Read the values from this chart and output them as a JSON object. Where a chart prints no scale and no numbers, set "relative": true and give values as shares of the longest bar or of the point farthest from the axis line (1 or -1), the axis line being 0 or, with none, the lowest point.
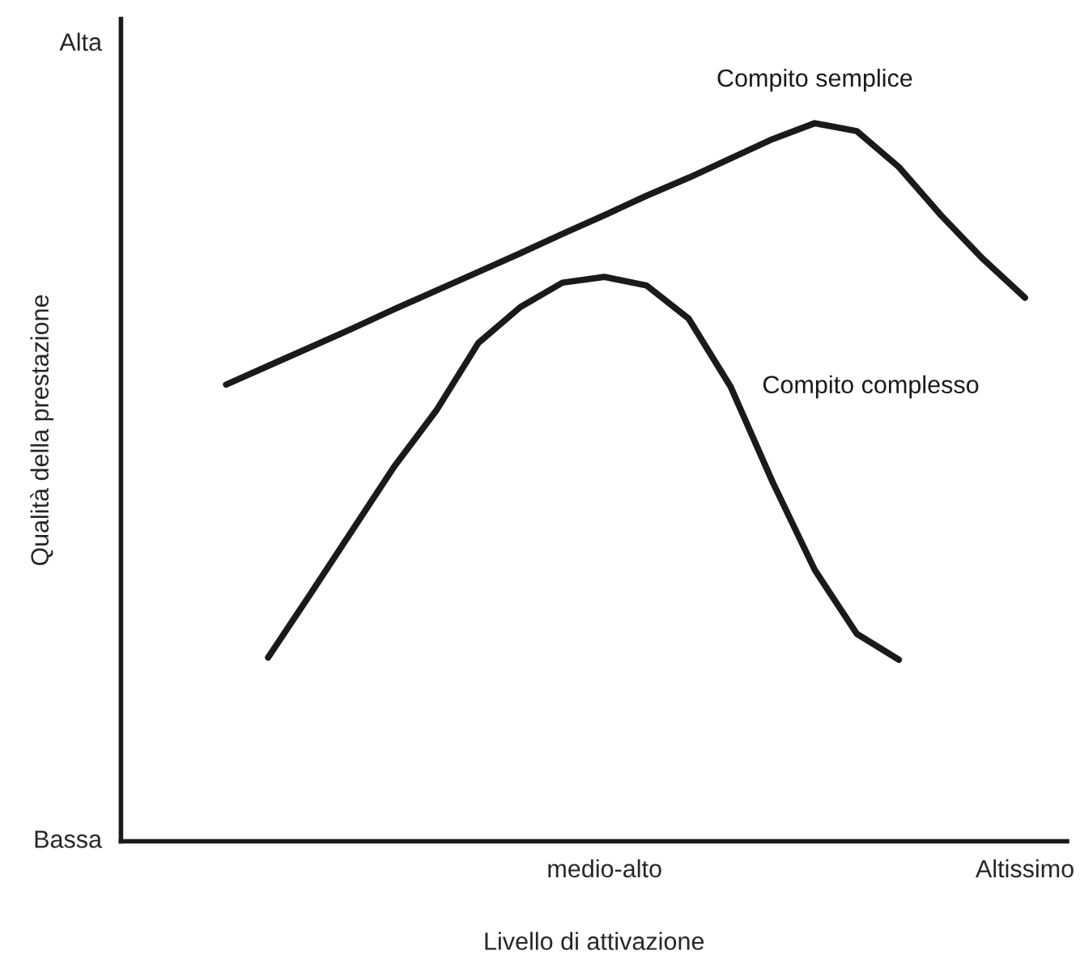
{
  "chart_data": {
    "type": "line",
    "xlabel": "Livello di attivazione",
    "ylabel": "Qualità della prestazione",
    "relative": true,
    "categories": [
      null,
      null,
      null,
      null,
      null,
      null,
      null,
      null,
      null,
      null,
      "medio-alto",
      null,
      null,
      null,
      null,
      null,
      null,
      null,
      null,
      null,
      "Altissimo"
    ],
    "annotations": [
      "Alta",
      "Bassa"
    ],
    "grid": false,
    "legend": false,
    "marker": "none",
    "line_style": "solid",
    "series": [
      {
        "name": "Compito semplice",
        "color": "#1a1a1a",
        "values": [
          null,
          0.636,
          0.662,
          0.688,
          0.714,
          0.741,
          0.767,
          0.793,
          0.819,
          0.846,
          0.872,
          0.899,
          0.924,
          0.951,
          0.978,
          1.0,
          0.989,
          0.939,
          0.872,
          0.811,
          0.757
        ]
      },
      {
        "name": "Compito complesso",
        "color": "#1a1a1a",
        "values": [
          null,
          null,
          0.256,
          0.344,
          0.433,
          0.522,
          0.6,
          0.694,
          0.744,
          0.778,
          0.786,
          0.774,
          0.728,
          0.633,
          0.5,
          0.378,
          0.289,
          0.253,
          null,
          null,
          null
        ]
      }
    ]
  }
}
